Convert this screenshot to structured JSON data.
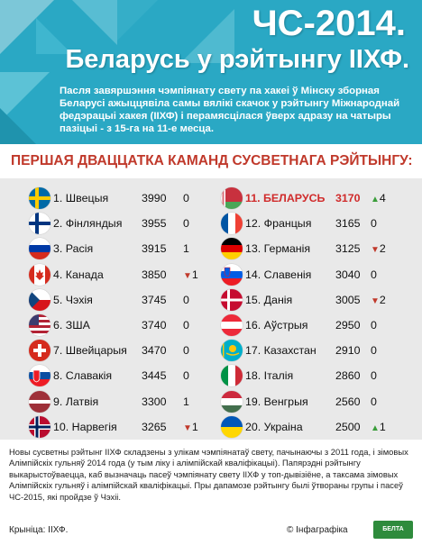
{
  "header": {
    "title1": "ЧС-2014.",
    "title2": "Беларусь у рэйтынгу ІІХФ.",
    "intro": "Пасля завяршэння чэмпіянату свету па хакеі ў Мінску зборная Беларусі ажыццявіла самы вялікі скачок у рэйтынгу Міжнароднай федэрацыі хакея (ІІХФ) і перамясцілася ўверх адразу на чатыры пазіцыі - з 15-га на 11-е месца."
  },
  "section_title": "ПЕРШАЯ ДВАЦЦАТКА КАМАНД СУСВЕТНАГА РЭЙТЫНГУ:",
  "left_rows": [
    {
      "name": "1. Швецыя",
      "points": "3990",
      "change": "0",
      "dir": "none",
      "flag": "sweden-flag-icon"
    },
    {
      "name": "2. Фінляндыя",
      "points": "3955",
      "change": "0",
      "dir": "none",
      "flag": "finland-flag-icon"
    },
    {
      "name": "3. Расія",
      "points": "3915",
      "change": "1",
      "dir": "none",
      "flag": "russia-flag-icon"
    },
    {
      "name": "4. Канада",
      "points": "3850",
      "change": "1",
      "dir": "down",
      "flag": "canada-flag-icon"
    },
    {
      "name": "5. Чэхія",
      "points": "3745",
      "change": "0",
      "dir": "none",
      "flag": "czech-flag-icon"
    },
    {
      "name": "6. ЗША",
      "points": "3740",
      "change": "0",
      "dir": "none",
      "flag": "usa-flag-icon"
    },
    {
      "name": "7. Швейцарыя",
      "points": "3470",
      "change": "0",
      "dir": "none",
      "flag": "switzerland-flag-icon"
    },
    {
      "name": "8. Славакія",
      "points": "3445",
      "change": "0",
      "dir": "none",
      "flag": "slovakia-flag-icon"
    },
    {
      "name": "9. Латвія",
      "points": "3300",
      "change": "1",
      "dir": "none",
      "flag": "latvia-flag-icon"
    },
    {
      "name": "10. Нарвегія",
      "points": "3265",
      "change": "1",
      "dir": "down",
      "flag": "norway-flag-icon"
    }
  ],
  "right_rows": [
    {
      "name": "11. БЕЛАРУСЬ",
      "points": "3170",
      "change": "4",
      "dir": "up",
      "flag": "belarus-flag-icon",
      "highlight": true
    },
    {
      "name": "12. Францыя",
      "points": "3165",
      "change": "0",
      "dir": "none",
      "flag": "france-flag-icon"
    },
    {
      "name": "13. Германія",
      "points": "3125",
      "change": "2",
      "dir": "down",
      "flag": "germany-flag-icon"
    },
    {
      "name": "14. Славенія",
      "points": "3040",
      "change": "0",
      "dir": "none",
      "flag": "slovenia-flag-icon"
    },
    {
      "name": "15. Данія",
      "points": "3005",
      "change": "2",
      "dir": "down",
      "flag": "denmark-flag-icon"
    },
    {
      "name": "16. Аўстрыя",
      "points": "2950",
      "change": "0",
      "dir": "none",
      "flag": "austria-flag-icon"
    },
    {
      "name": "17. Казахстан",
      "points": "2910",
      "change": "0",
      "dir": "none",
      "flag": "kazakhstan-flag-icon"
    },
    {
      "name": "18. Італія",
      "points": "2860",
      "change": "0",
      "dir": "none",
      "flag": "italy-flag-icon"
    },
    {
      "name": "19. Венгрыя",
      "points": "2560",
      "change": "0",
      "dir": "none",
      "flag": "hungary-flag-icon"
    },
    {
      "name": "20. Украіна",
      "points": "2500",
      "change": "1",
      "dir": "up",
      "flag": "ukraine-flag-icon"
    }
  ],
  "footer": {
    "note": "Новы сусветны рэйтынг ІІХФ складзены з улікам чэмпіянатаў свету, пачынаючы з 2011 года, і зімовых Алімпійскіх гульняў 2014 года (у тым ліку і алімпійскай кваліфікацыі). Папярэдні рэйтынгу выкарыстоўваецца, каб вызначаць пасеў чэмпіянату свету ІІХФ у топ-дывізіёне, а таксама зімовых Алімпійскіх гульняў і алімпійскай кваліфікацыі. Пры дапамозе рэйтынгу былі ўтвораны групы і пасеў ЧС-2015, які пройдзе ў Чэхіі.",
    "source": "Крыніца: ІІХФ.",
    "credit": "© Інфаграфіка",
    "logo": "БЕЛТА"
  },
  "colors": {
    "header_bg": "#2aa8c4",
    "accent_red": "#c0392b",
    "up_green": "#3a9d3a",
    "table_bg": "#e9e9e9"
  }
}
